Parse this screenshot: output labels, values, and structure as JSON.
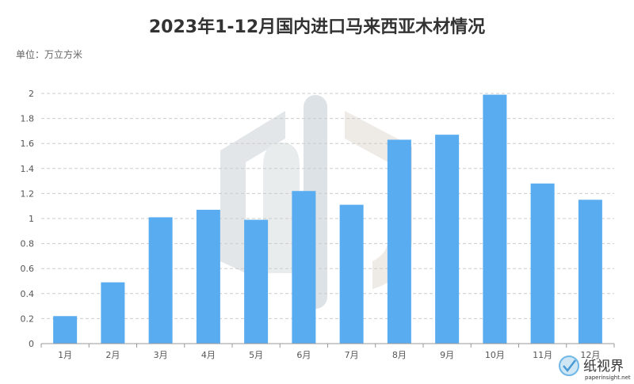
{
  "page": {
    "title": "2023年1-12月国内进口马来西亚木材情况",
    "unit_label": "单位：万立方米"
  },
  "chart_data": {
    "type": "bar",
    "categories": [
      "1月",
      "2月",
      "3月",
      "4月",
      "5月",
      "6月",
      "7月",
      "8月",
      "9月",
      "10月",
      "11月",
      "12月"
    ],
    "values": [
      0.22,
      0.49,
      1.01,
      1.07,
      0.99,
      1.22,
      1.11,
      1.63,
      1.67,
      1.99,
      1.28,
      1.15
    ],
    "ylim": [
      0,
      2
    ],
    "yticks": [
      "0",
      "0.2",
      "0.4",
      "0.6",
      "0.8",
      "1",
      "1.2",
      "1.4",
      "1.6",
      "1.8",
      "2"
    ],
    "grid": true,
    "bar_color": "#5aacf0",
    "title": "2023年1-12月国内进口马来西亚木材情况",
    "xlabel": "",
    "ylabel": ""
  },
  "watermark": {
    "brand_text": "纸视界",
    "brand_url": "paperinsight.net"
  }
}
